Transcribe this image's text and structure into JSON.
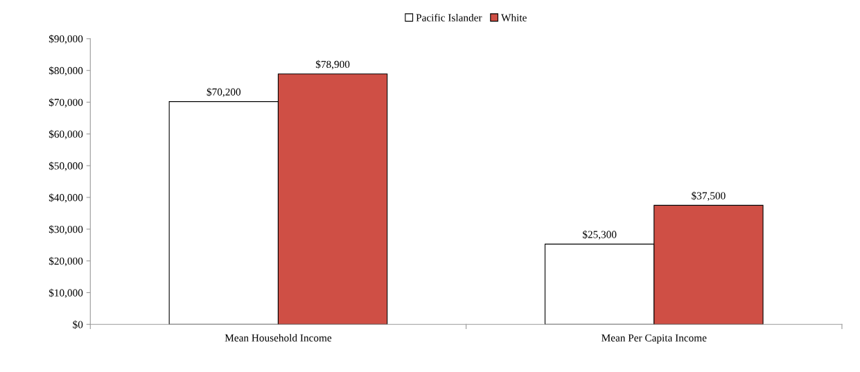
{
  "chart_data": {
    "type": "bar",
    "categories": [
      "Mean Household Income",
      "Mean Per Capita Income"
    ],
    "series": [
      {
        "name": "Pacific Islander",
        "color": "#ffffff",
        "values": [
          70200,
          25300
        ],
        "value_labels": [
          "$70,200",
          "$25,300"
        ]
      },
      {
        "name": "White",
        "color": "#cf4f45",
        "values": [
          78900,
          37500
        ],
        "value_labels": [
          "$78,900",
          "$37,500"
        ]
      }
    ],
    "ylim": [
      0,
      90000
    ],
    "yticks": [
      {
        "value": 0,
        "label": "$0"
      },
      {
        "value": 10000,
        "label": "$10,000"
      },
      {
        "value": 20000,
        "label": "$20,000"
      },
      {
        "value": 30000,
        "label": "$30,000"
      },
      {
        "value": 40000,
        "label": "$40,000"
      },
      {
        "value": 50000,
        "label": "$50,000"
      },
      {
        "value": 60000,
        "label": "$60,000"
      },
      {
        "value": 70000,
        "label": "$70,000"
      },
      {
        "value": 80000,
        "label": "$80,000"
      },
      {
        "value": 90000,
        "label": "$90,000"
      }
    ],
    "grid": false,
    "legend": "top"
  }
}
